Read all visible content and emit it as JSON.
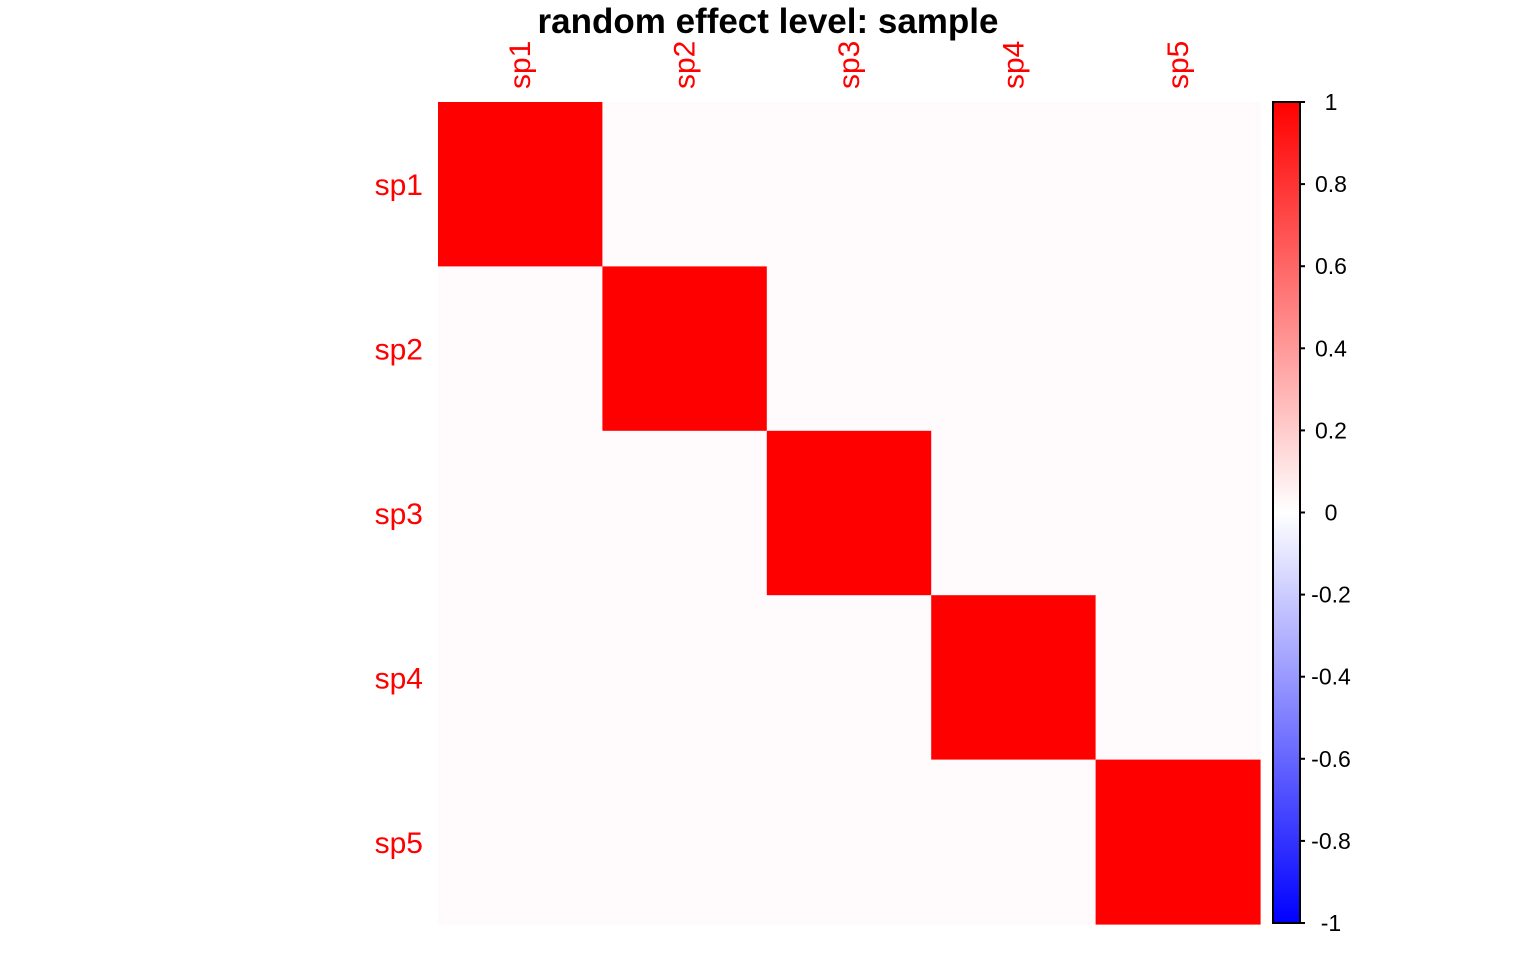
{
  "chart_data": {
    "type": "heatmap",
    "title": "random effect level: sample",
    "x_labels": [
      "sp1",
      "sp2",
      "sp3",
      "sp4",
      "sp5"
    ],
    "y_labels": [
      "sp1",
      "sp2",
      "sp3",
      "sp4",
      "sp5"
    ],
    "values": [
      [
        1,
        0,
        0,
        0,
        0
      ],
      [
        0,
        1,
        0,
        0,
        0
      ],
      [
        0,
        0,
        1,
        0,
        0
      ],
      [
        0,
        0,
        0,
        1,
        0
      ],
      [
        0,
        0,
        0,
        0,
        1
      ]
    ],
    "colorbar": {
      "range": [
        -1,
        1
      ],
      "ticks": [
        "1",
        "0.8",
        "0.6",
        "0.4",
        "0.2",
        "0",
        "-0.2",
        "-0.4",
        "-0.6",
        "-0.8",
        "-1"
      ],
      "colors": {
        "low": "#0000ff",
        "mid": "#ffffff",
        "high": "#ff0000"
      }
    },
    "label_color": "#ff0000",
    "zero_cell_color": "#fffbfd",
    "grid": false,
    "legend": "right"
  }
}
